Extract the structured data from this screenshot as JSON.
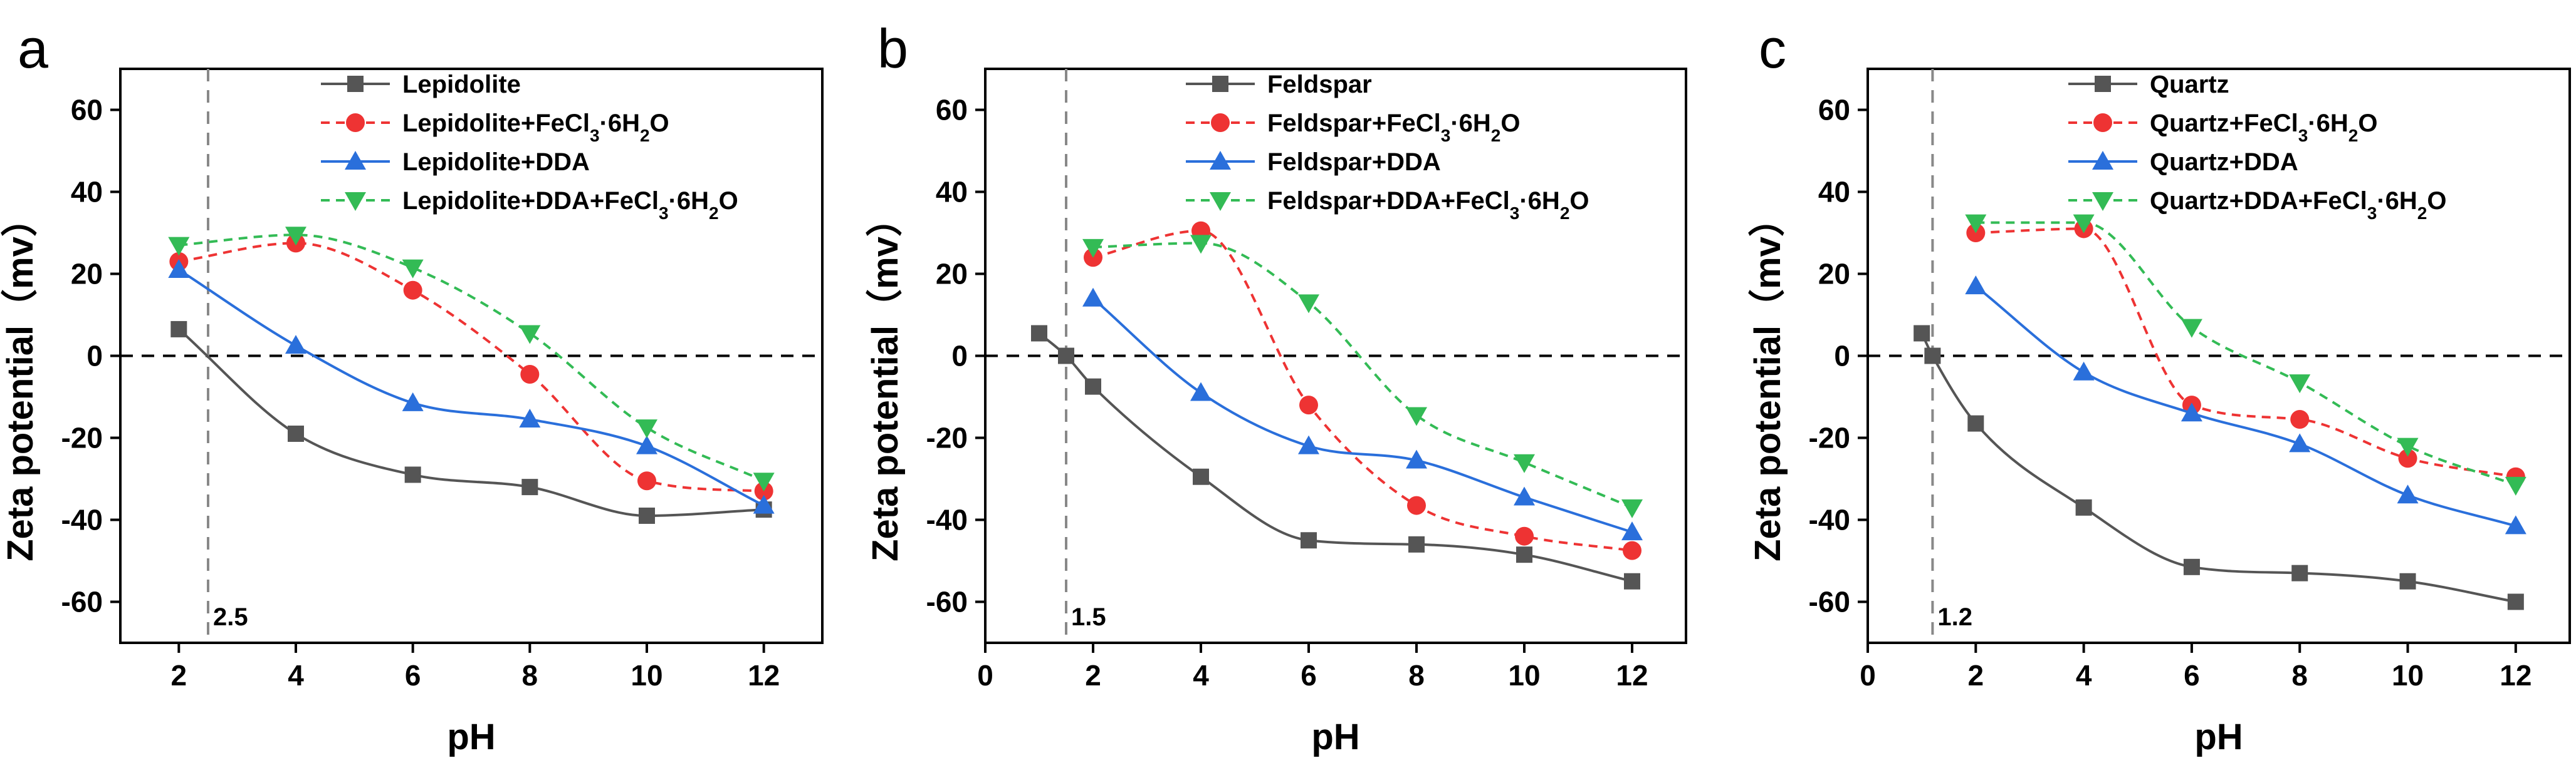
{
  "chart_data": [
    {
      "type": "line",
      "panel_label": "a",
      "xlabel": "pH",
      "ylabel": "Zeta potential（mv）",
      "xlim": [
        1,
        13
      ],
      "ylim": [
        -70,
        70
      ],
      "xticks": [
        2,
        4,
        6,
        8,
        10,
        12
      ],
      "yticks": [
        -60,
        -40,
        -20,
        0,
        20,
        40,
        60
      ],
      "zero_line": true,
      "reference_line": {
        "x": 2.5,
        "label": "2.5"
      },
      "legend_position": "top-right",
      "series": [
        {
          "name": "Lepidolite",
          "name_parts": [
            "Lepidolite"
          ],
          "color": "#555555",
          "marker": "square",
          "dash": "solid",
          "x": [
            2,
            4,
            6,
            8,
            10,
            12
          ],
          "y": [
            6.5,
            -19,
            -29,
            -32,
            -39,
            -37.5
          ]
        },
        {
          "name": "Lepidolite+FeCl3·6H2O",
          "name_parts": [
            "Lepidolite+FeCl",
            "3",
            "·6H",
            "2",
            "O"
          ],
          "color": "#EE3333",
          "marker": "circle",
          "dash": "dashed",
          "x": [
            2,
            4,
            6,
            8,
            10,
            12
          ],
          "y": [
            23,
            27.5,
            16,
            -4.5,
            -30.5,
            -33
          ]
        },
        {
          "name": "Lepidolite+DDA",
          "name_parts": [
            "Lepidolite+DDA"
          ],
          "color": "#2A6FDB",
          "marker": "triangle-up",
          "dash": "solid",
          "x": [
            2,
            4,
            6,
            8,
            10,
            12
          ],
          "y": [
            21,
            2.5,
            -11.5,
            -15.5,
            -22,
            -36.5
          ]
        },
        {
          "name": "Lepidolite+DDA+FeCl3·6H2O",
          "name_parts": [
            "Lepidolite+DDA+FeCl",
            "3",
            "·6H",
            "2",
            "O"
          ],
          "color": "#33BB55",
          "marker": "triangle-down",
          "dash": "dashed",
          "x": [
            2,
            4,
            6,
            8,
            10,
            12
          ],
          "y": [
            27,
            29.5,
            21.5,
            5.5,
            -17.5,
            -30.5
          ]
        }
      ]
    },
    {
      "type": "line",
      "panel_label": "b",
      "xlabel": "pH",
      "ylabel": "Zeta potential（mv）",
      "xlim": [
        0,
        13
      ],
      "ylim": [
        -70,
        70
      ],
      "xticks": [
        0,
        2,
        4,
        6,
        8,
        10,
        12
      ],
      "yticks": [
        -60,
        -40,
        -20,
        0,
        20,
        40,
        60
      ],
      "zero_line": true,
      "reference_line": {
        "x": 1.5,
        "label": "1.5"
      },
      "legend_position": "top-right",
      "series": [
        {
          "name": "Feldspar",
          "name_parts": [
            "Feldspar"
          ],
          "color": "#555555",
          "marker": "square",
          "dash": "solid",
          "x": [
            1,
            1.5,
            2,
            4,
            6,
            8,
            10,
            12
          ],
          "y": [
            5.5,
            0,
            -7.5,
            -29.5,
            -45,
            -46,
            -48.5,
            -55
          ]
        },
        {
          "name": "Feldspar+FeCl3·6H2O",
          "name_parts": [
            "Feldspar+FeCl",
            "3",
            "·6H",
            "2",
            "O"
          ],
          "color": "#EE3333",
          "marker": "circle",
          "dash": "dashed",
          "x": [
            2,
            4,
            6,
            8,
            10,
            12
          ],
          "y": [
            24,
            30.5,
            -12,
            -36.5,
            -44,
            -47.5
          ]
        },
        {
          "name": "Feldspar+DDA",
          "name_parts": [
            "Feldspar+DDA"
          ],
          "color": "#2A6FDB",
          "marker": "triangle-up",
          "dash": "solid",
          "x": [
            2,
            4,
            6,
            8,
            10,
            12
          ],
          "y": [
            14,
            -9,
            -22,
            -25.5,
            -34.5,
            -43
          ]
        },
        {
          "name": "Feldspar+DDA+FeCl3·6H2O",
          "name_parts": [
            "Feldspar+DDA+FeCl",
            "3",
            "·6H",
            "2",
            "O"
          ],
          "color": "#33BB55",
          "marker": "triangle-down",
          "dash": "dashed",
          "x": [
            2,
            4,
            6,
            8,
            10,
            12
          ],
          "y": [
            26.5,
            27.5,
            13,
            -14.5,
            -26,
            -37
          ]
        }
      ]
    },
    {
      "type": "line",
      "panel_label": "c",
      "xlabel": "pH",
      "ylabel": "Zeta potential（mv）",
      "xlim": [
        0,
        13
      ],
      "ylim": [
        -70,
        70
      ],
      "xticks": [
        0,
        2,
        4,
        6,
        8,
        10,
        12
      ],
      "yticks": [
        -60,
        -40,
        -20,
        0,
        20,
        40,
        60
      ],
      "zero_line": true,
      "reference_line": {
        "x": 1.2,
        "label": "1.2"
      },
      "legend_position": "top-right",
      "series": [
        {
          "name": "Quartz",
          "name_parts": [
            "Quartz"
          ],
          "color": "#555555",
          "marker": "square",
          "dash": "solid",
          "x": [
            1,
            1.2,
            2,
            4,
            6,
            8,
            10,
            12
          ],
          "y": [
            5.5,
            0,
            -16.5,
            -37,
            -51.5,
            -53,
            -55,
            -60
          ]
        },
        {
          "name": "Quartz+FeCl3·6H2O",
          "name_parts": [
            "Quartz+FeCl",
            "3",
            "·6H",
            "2",
            "O"
          ],
          "color": "#EE3333",
          "marker": "circle",
          "dash": "dashed",
          "x": [
            2,
            4,
            6,
            8,
            10,
            12
          ],
          "y": [
            30,
            31,
            -12,
            -15.5,
            -25,
            -29.5
          ]
        },
        {
          "name": "Quartz+DDA",
          "name_parts": [
            "Quartz+DDA"
          ],
          "color": "#2A6FDB",
          "marker": "triangle-up",
          "dash": "solid",
          "x": [
            2,
            4,
            6,
            8,
            10,
            12
          ],
          "y": [
            17,
            -4,
            -14,
            -21.5,
            -34,
            -41.5
          ]
        },
        {
          "name": "Quartz+DDA+FeCl3·6H2O",
          "name_parts": [
            "Quartz+DDA+FeCl",
            "3",
            "·6H",
            "2",
            "O"
          ],
          "color": "#33BB55",
          "marker": "triangle-down",
          "dash": "dashed",
          "x": [
            2,
            4,
            6,
            8,
            10,
            12
          ],
          "y": [
            32.5,
            32.5,
            7,
            -6.5,
            -22,
            -31.5
          ]
        }
      ]
    }
  ]
}
